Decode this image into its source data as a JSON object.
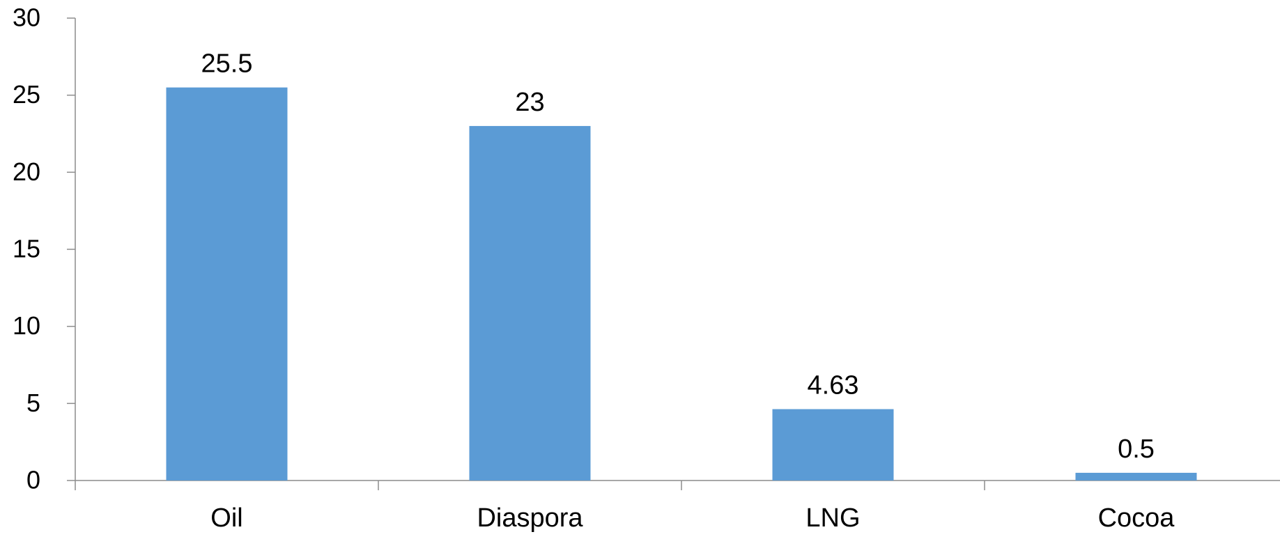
{
  "chart_data": {
    "type": "bar",
    "categories": [
      "Oil",
      "Diaspora",
      "LNG",
      "Cocoa"
    ],
    "values": [
      25.5,
      23,
      4.63,
      0.5
    ],
    "data_labels": [
      "25.5",
      "23",
      "4.63",
      "0.5"
    ],
    "y_ticks": [
      "0",
      "5",
      "10",
      "15",
      "20",
      "25",
      "30"
    ],
    "ylim": [
      0,
      30
    ],
    "grid": false,
    "legend": "none",
    "bar_color": "#5b9bd5"
  }
}
